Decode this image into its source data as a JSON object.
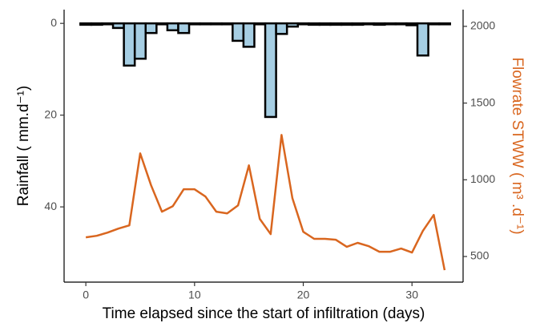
{
  "chart_data": {
    "type": "bar_line_dual",
    "x_label": "Time elapsed since the start of infiltration (days)",
    "y_label": "Rainfall ( mm.d⁻¹)",
    "y2_label": "Flowrate STWW ( m³ .d⁻¹)",
    "x": [
      0,
      1,
      2,
      3,
      4,
      5,
      6,
      7,
      8,
      9,
      10,
      11,
      12,
      13,
      14,
      15,
      16,
      17,
      18,
      19,
      20,
      21,
      22,
      23,
      24,
      25,
      26,
      27,
      28,
      29,
      30,
      31,
      32,
      33
    ],
    "series": [
      {
        "name": "Rainfall",
        "color": "#a6cee3",
        "kind": "bar",
        "axis": "y",
        "values": [
          0.3,
          0.3,
          0.2,
          1,
          9.2,
          7.7,
          2.1,
          0.2,
          1.5,
          2.1,
          0.2,
          0.2,
          0.2,
          0.2,
          3.8,
          5.1,
          0.2,
          20.4,
          2.3,
          0.7,
          0.2,
          0.3,
          0.3,
          0.3,
          0.3,
          0.3,
          0.2,
          0.3,
          0.2,
          0.2,
          0.4,
          7,
          0.2,
          0.2
        ]
      },
      {
        "name": "Flowrate STWW",
        "color": "#d9661f",
        "kind": "line",
        "axis": "y2",
        "values": [
          625,
          635,
          656,
          682,
          703,
          1172,
          964,
          792,
          828,
          938,
          938,
          891,
          792,
          781,
          833,
          1094,
          745,
          646,
          1292,
          880,
          661,
          615,
          615,
          609,
          563,
          589,
          568,
          531,
          531,
          552,
          526,
          667,
          771,
          411
        ]
      }
    ],
    "xlim": [
      -2,
      34.7
    ],
    "xticks": [
      0,
      10,
      20,
      30
    ],
    "ylim": [
      -3,
      56.4
    ],
    "yticks": [
      0,
      20,
      40
    ],
    "y_reversed": true,
    "y2lim": [
      333,
      2109
    ],
    "y2ticks": [
      500,
      1000,
      1500,
      2000
    ],
    "y2_label_color": "#d9661f"
  }
}
